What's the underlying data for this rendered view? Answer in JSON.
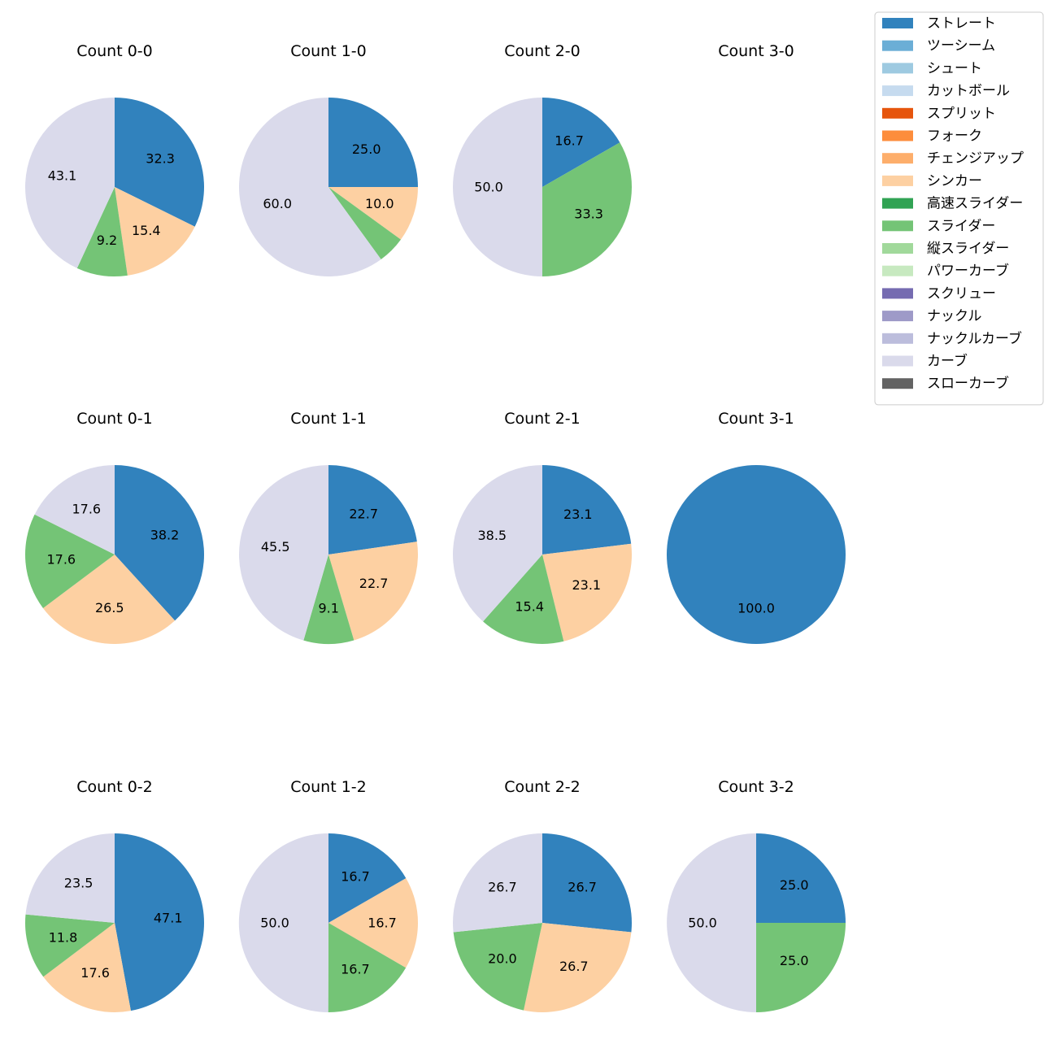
{
  "colors": {
    "ストレート": "#3182bd",
    "ツーシーム": "#6baed6",
    "シュート": "#9ecae1",
    "カットボール": "#c6dbef",
    "スプリット": "#e6550d",
    "フォーク": "#fd8d3c",
    "チェンジアップ": "#fdae6b",
    "シンカー": "#fdd0a2",
    "高速スライダー": "#31a354",
    "スライダー": "#74c476",
    "縦スライダー": "#a1d99b",
    "パワーカーブ": "#c7e9c0",
    "スクリュー": "#756bb1",
    "ナックル": "#9e9ac8",
    "ナックルカーブ": "#bcbddc",
    "カーブ": "#dadaeb",
    "スローカーブ": "#636363"
  },
  "chart_data": {
    "type": "pie",
    "legend_position": "top-right",
    "legend": [
      "ストレート",
      "ツーシーム",
      "シュート",
      "カットボール",
      "スプリット",
      "フォーク",
      "チェンジアップ",
      "シンカー",
      "高速スライダー",
      "スライダー",
      "縦スライダー",
      "パワーカーブ",
      "スクリュー",
      "ナックル",
      "ナックルカーブ",
      "カーブ",
      "スローカーブ"
    ],
    "charts": [
      {
        "title": "Count 0-0",
        "slices": [
          {
            "name": "ストレート",
            "value": 32.3,
            "label": "32.3"
          },
          {
            "name": "シンカー",
            "value": 15.4,
            "label": "15.4"
          },
          {
            "name": "スライダー",
            "value": 9.2,
            "label": "9.2"
          },
          {
            "name": "カーブ",
            "value": 43.1,
            "label": "43.1"
          }
        ]
      },
      {
        "title": "Count 1-0",
        "slices": [
          {
            "name": "ストレート",
            "value": 25.0,
            "label": "25.0"
          },
          {
            "name": "シンカー",
            "value": 10.0,
            "label": "10.0"
          },
          {
            "name": "スライダー",
            "value": 5.0,
            "label": ""
          },
          {
            "name": "カーブ",
            "value": 60.0,
            "label": "60.0"
          }
        ]
      },
      {
        "title": "Count 2-0",
        "slices": [
          {
            "name": "ストレート",
            "value": 16.7,
            "label": "16.7"
          },
          {
            "name": "スライダー",
            "value": 33.3,
            "label": "33.3"
          },
          {
            "name": "カーブ",
            "value": 50.0,
            "label": "50.0"
          }
        ]
      },
      {
        "title": "Count 3-0",
        "slices": []
      },
      {
        "title": "Count 0-1",
        "slices": [
          {
            "name": "ストレート",
            "value": 38.2,
            "label": "38.2"
          },
          {
            "name": "シンカー",
            "value": 26.5,
            "label": "26.5"
          },
          {
            "name": "スライダー",
            "value": 17.6,
            "label": "17.6"
          },
          {
            "name": "カーブ",
            "value": 17.6,
            "label": "17.6"
          }
        ]
      },
      {
        "title": "Count 1-1",
        "slices": [
          {
            "name": "ストレート",
            "value": 22.7,
            "label": "22.7"
          },
          {
            "name": "シンカー",
            "value": 22.7,
            "label": "22.7"
          },
          {
            "name": "スライダー",
            "value": 9.1,
            "label": "9.1"
          },
          {
            "name": "カーブ",
            "value": 45.5,
            "label": "45.5"
          }
        ]
      },
      {
        "title": "Count 2-1",
        "slices": [
          {
            "name": "ストレート",
            "value": 23.1,
            "label": "23.1"
          },
          {
            "name": "シンカー",
            "value": 23.1,
            "label": "23.1"
          },
          {
            "name": "スライダー",
            "value": 15.4,
            "label": "15.4"
          },
          {
            "name": "カーブ",
            "value": 38.5,
            "label": "38.5"
          }
        ]
      },
      {
        "title": "Count 3-1",
        "slices": [
          {
            "name": "ストレート",
            "value": 100.0,
            "label": "100.0"
          }
        ]
      },
      {
        "title": "Count 0-2",
        "slices": [
          {
            "name": "ストレート",
            "value": 47.1,
            "label": "47.1"
          },
          {
            "name": "シンカー",
            "value": 17.6,
            "label": "17.6"
          },
          {
            "name": "スライダー",
            "value": 11.8,
            "label": "11.8"
          },
          {
            "name": "カーブ",
            "value": 23.5,
            "label": "23.5"
          }
        ]
      },
      {
        "title": "Count 1-2",
        "slices": [
          {
            "name": "ストレート",
            "value": 16.7,
            "label": "16.7"
          },
          {
            "name": "シンカー",
            "value": 16.7,
            "label": "16.7"
          },
          {
            "name": "スライダー",
            "value": 16.7,
            "label": "16.7"
          },
          {
            "name": "カーブ",
            "value": 50.0,
            "label": "50.0"
          }
        ]
      },
      {
        "title": "Count 2-2",
        "slices": [
          {
            "name": "ストレート",
            "value": 26.7,
            "label": "26.7"
          },
          {
            "name": "シンカー",
            "value": 26.7,
            "label": "26.7"
          },
          {
            "name": "スライダー",
            "value": 20.0,
            "label": "20.0"
          },
          {
            "name": "カーブ",
            "value": 26.7,
            "label": "26.7"
          }
        ]
      },
      {
        "title": "Count 3-2",
        "slices": [
          {
            "name": "ストレート",
            "value": 25.0,
            "label": "25.0"
          },
          {
            "name": "スライダー",
            "value": 25.0,
            "label": "25.0"
          },
          {
            "name": "カーブ",
            "value": 50.0,
            "label": "50.0"
          }
        ]
      }
    ]
  }
}
